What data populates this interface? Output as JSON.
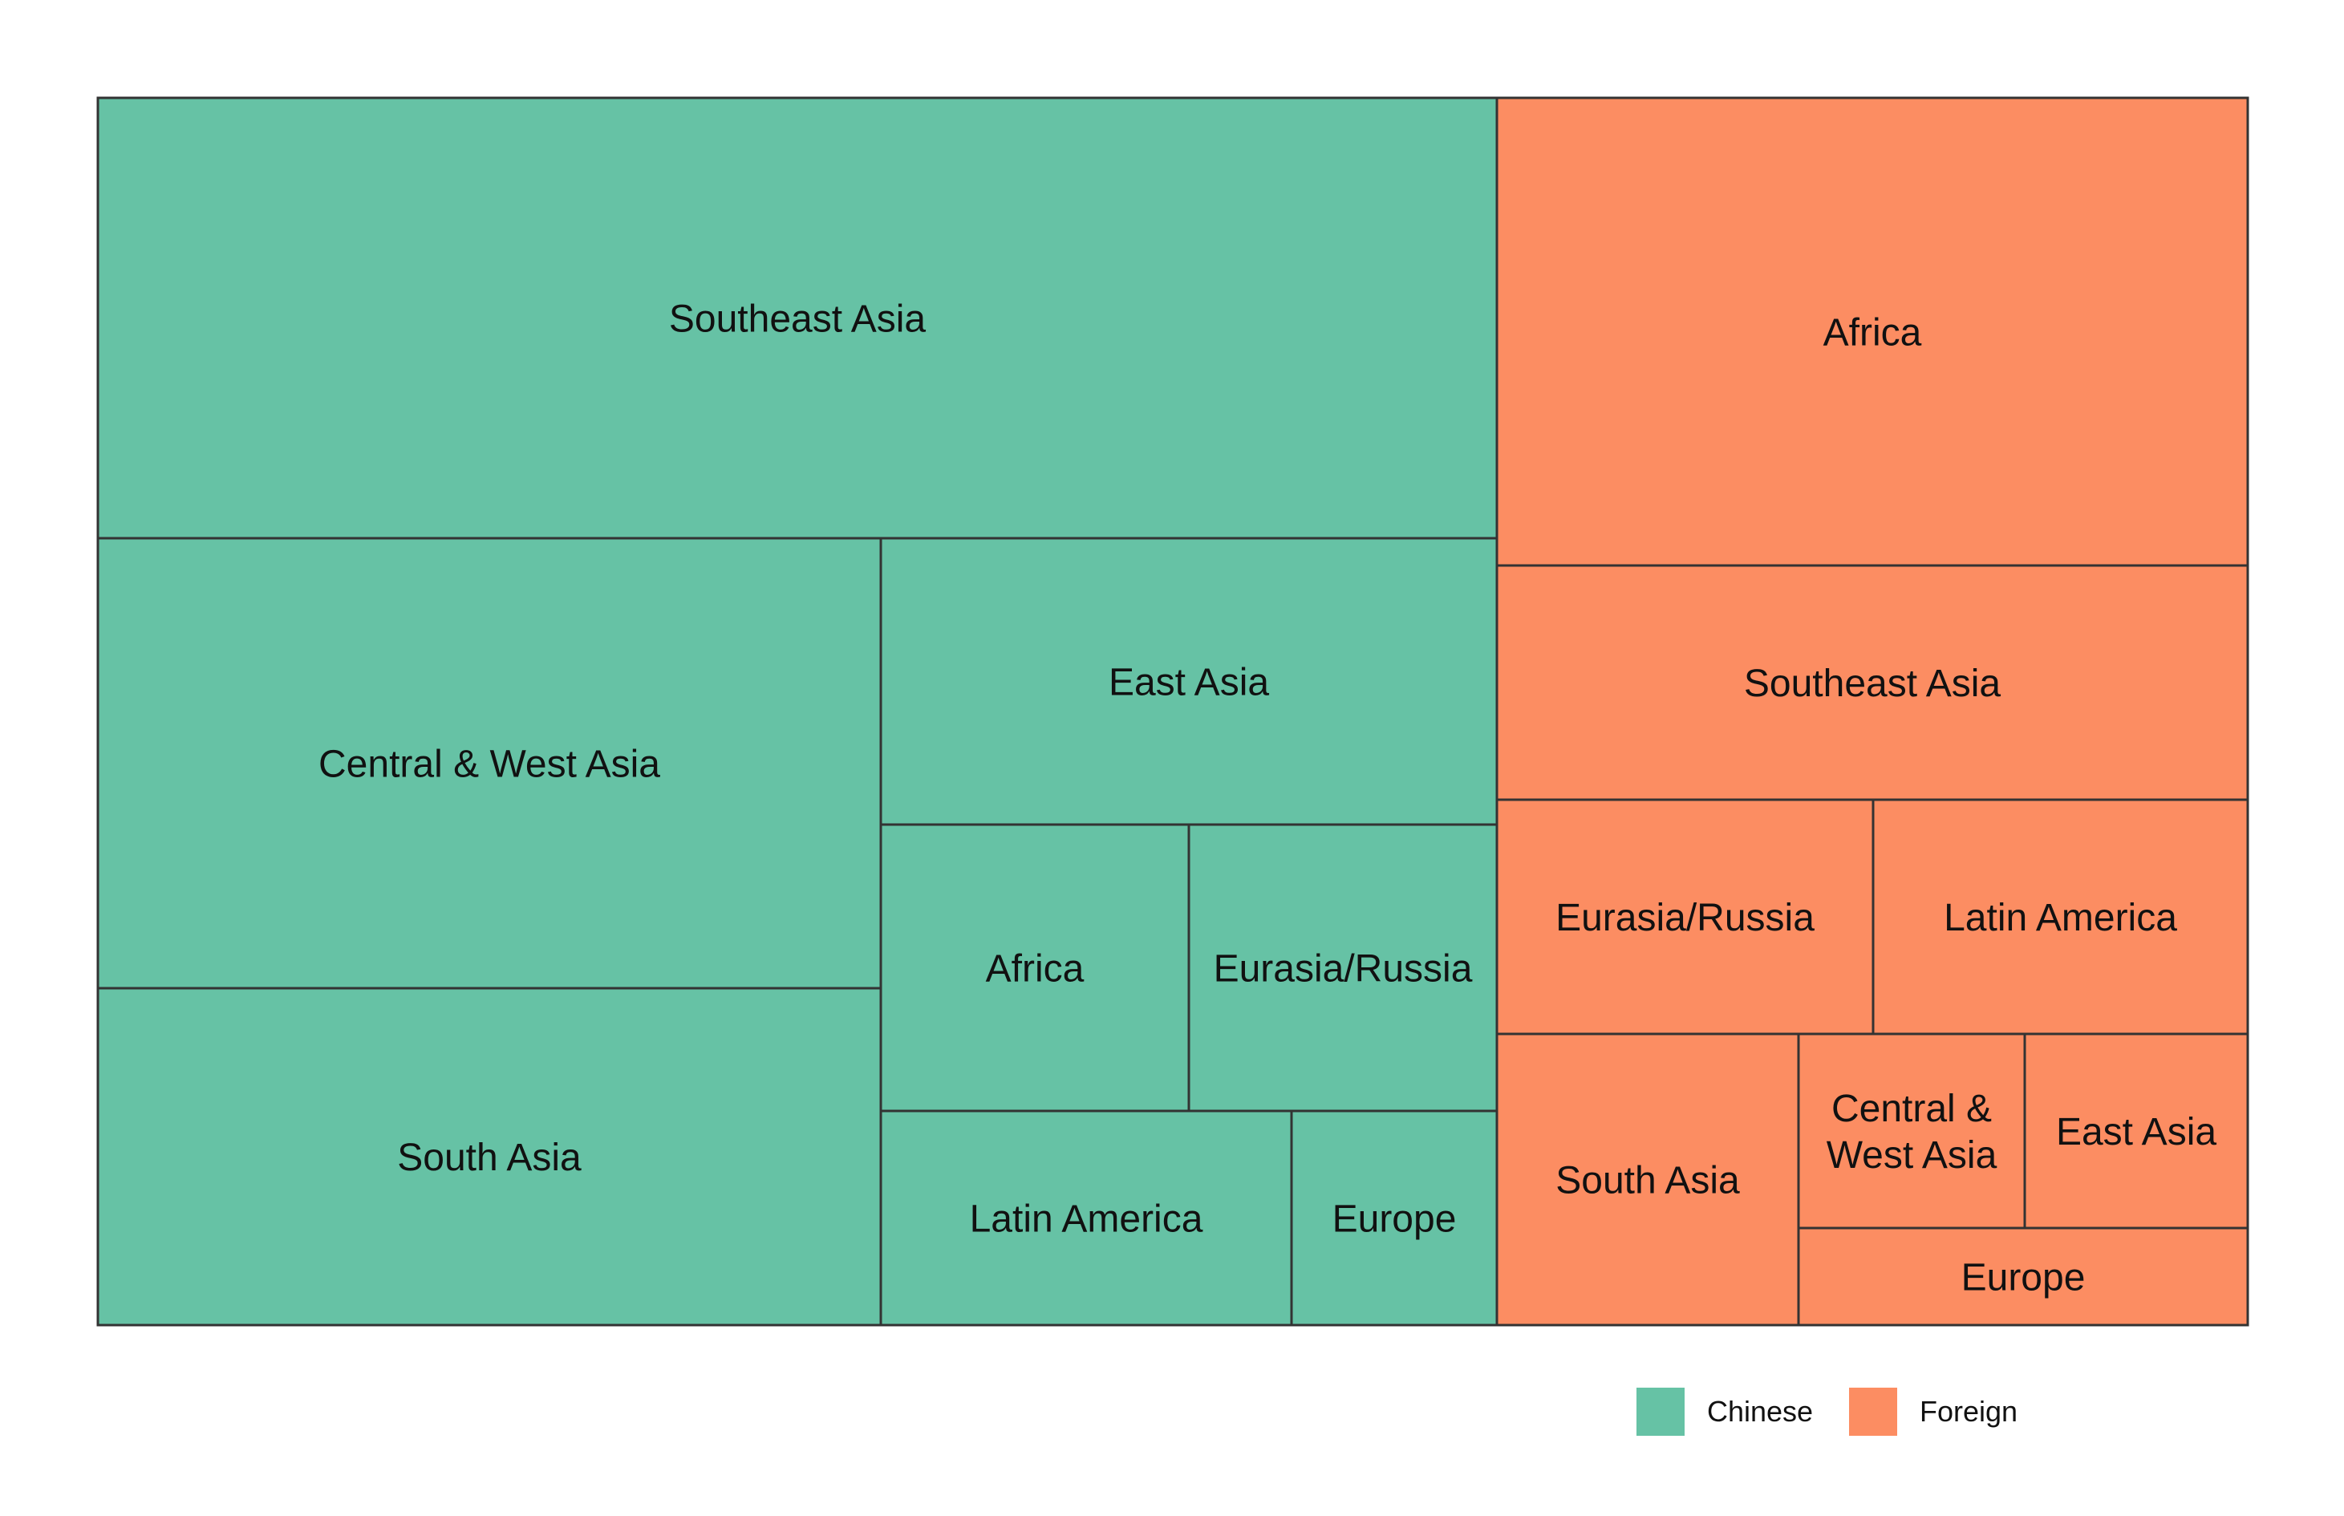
{
  "chart_data": {
    "type": "treemap",
    "value_unit": "share of total area",
    "groups": [
      {
        "name": "Chinese",
        "color": "#66c2a5",
        "items": [
          {
            "label": "Southeast Asia",
            "value": 0.2329
          },
          {
            "label": "Central & West Asia",
            "value": 0.1247
          },
          {
            "label": "South Asia",
            "value": 0.0932
          },
          {
            "label": "East Asia",
            "value": 0.0668
          },
          {
            "label": "Africa",
            "value": 0.0335
          },
          {
            "label": "Eurasia/Russia",
            "value": 0.0333
          },
          {
            "label": "Latin America",
            "value": 0.0332
          },
          {
            "label": "Europe",
            "value": 0.0165
          }
        ]
      },
      {
        "name": "Foreign",
        "color": "#fc8d62",
        "items": [
          {
            "label": "Africa",
            "value": 0.1334
          },
          {
            "label": "Southeast Asia",
            "value": 0.0669
          },
          {
            "label": "Eurasia/Russia",
            "value": 0.0334
          },
          {
            "label": "Latin America",
            "value": 0.0334
          },
          {
            "label": "South Asia",
            "value": 0.0334
          },
          {
            "label": "Central & West Asia",
            "value": 0.0167
          },
          {
            "label": "East Asia",
            "value": 0.0167
          },
          {
            "label": "Europe",
            "value": 0.0166
          }
        ]
      }
    ],
    "legend": {
      "position": "bottom-right",
      "items": [
        {
          "label": "Chinese",
          "color": "#66c2a5"
        },
        {
          "label": "Foreign",
          "color": "#fc8d62"
        }
      ]
    },
    "border_color": "#333333"
  }
}
